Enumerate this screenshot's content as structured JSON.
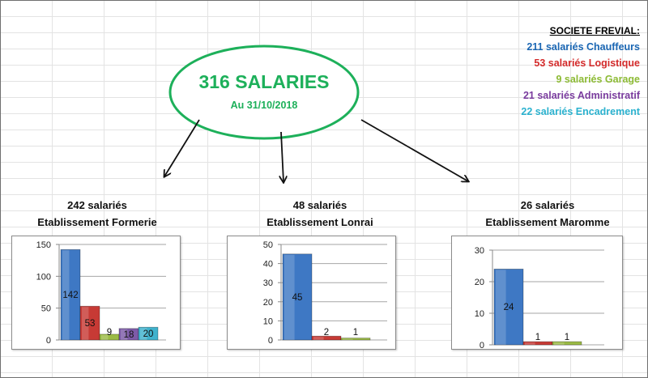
{
  "summary": {
    "total": "316 SALARIES",
    "date": "Au 31/10/2018"
  },
  "legend": {
    "title": "SOCIETE FREVIAL:",
    "items": [
      {
        "text": "211 salariés Chauffeurs",
        "color": "#1a66b3"
      },
      {
        "text": "53 salariés Logistique",
        "color": "#d42b2b"
      },
      {
        "text": "9 salariés Garage",
        "color": "#8dbb35"
      },
      {
        "text": "21 salariés Administratif",
        "color": "#7a3c9e"
      },
      {
        "text": "22 salariés Encadrement",
        "color": "#2bb2cf"
      }
    ]
  },
  "establishments": [
    {
      "count_label": "242 salariés",
      "name": "Etablissement Formerie"
    },
    {
      "count_label": "48 salariés",
      "name": "Etablissement Lonrai"
    },
    {
      "count_label": "26 salariés",
      "name": "Etablissement Maromme"
    }
  ],
  "colors": {
    "series": [
      "#3e78c4",
      "#c73a35",
      "#9bbb45",
      "#7d5ba8",
      "#3fb2cd"
    ],
    "ellipse": "#1db05a",
    "arrows": "#111111"
  },
  "chart_data": [
    {
      "type": "bar",
      "categories": [
        "",
        "",
        "",
        "",
        ""
      ],
      "values": [
        142,
        53,
        9,
        18,
        20
      ],
      "data_labels": [
        "142",
        "53",
        "9",
        "18",
        "20"
      ],
      "ylim": [
        0,
        150
      ],
      "yticks": [
        0,
        50,
        100,
        150
      ],
      "grid": true,
      "legend": "none"
    },
    {
      "type": "bar",
      "categories": [
        "",
        "",
        ""
      ],
      "values": [
        45,
        2,
        1
      ],
      "data_labels": [
        "45",
        "2",
        "1"
      ],
      "ylim": [
        0,
        50
      ],
      "yticks": [
        0,
        10,
        20,
        30,
        40,
        50
      ],
      "grid": true,
      "legend": "none"
    },
    {
      "type": "bar",
      "categories": [
        "",
        "",
        ""
      ],
      "values": [
        24,
        1,
        1
      ],
      "data_labels": [
        "24",
        "1",
        "1"
      ],
      "ylim": [
        0,
        30
      ],
      "yticks": [
        0,
        10,
        20,
        30
      ],
      "grid": true,
      "legend": "none"
    }
  ]
}
